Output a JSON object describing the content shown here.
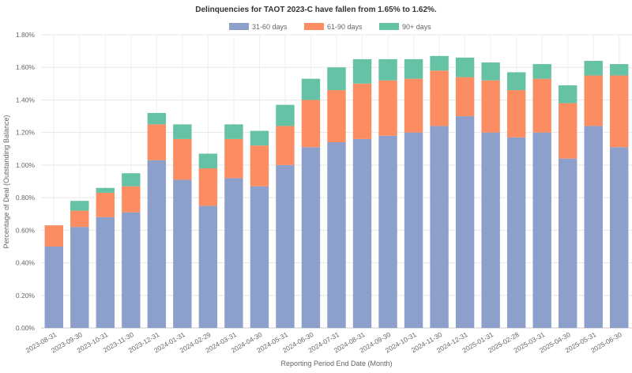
{
  "chart_data": {
    "type": "bar",
    "stacked": true,
    "title": "Delinquencies for TAOT 2023-C have fallen from 1.65% to 1.62%.",
    "xlabel": "Reporting Period End Date (Month)",
    "ylabel": "Percentage of Deal (Outstanding Balance)",
    "ylim": [
      0,
      1.8
    ],
    "yticks": [
      "0.00%",
      "0.20%",
      "0.40%",
      "0.60%",
      "0.80%",
      "1.00%",
      "1.20%",
      "1.40%",
      "1.60%",
      "1.80%"
    ],
    "grid": true,
    "legend_position": "top-center",
    "categories": [
      "2023-08-31",
      "2023-09-30",
      "2023-10-31",
      "2023-11-30",
      "2023-12-31",
      "2024-01-31",
      "2024-02-29",
      "2024-03-31",
      "2024-04-30",
      "2024-05-31",
      "2024-06-30",
      "2024-07-31",
      "2024-08-31",
      "2024-09-30",
      "2024-10-31",
      "2024-11-30",
      "2024-12-31",
      "2025-01-31",
      "2025-02-28",
      "2025-03-31",
      "2025-04-30",
      "2025-05-31",
      "2025-06-30"
    ],
    "series": [
      {
        "name": "31-60 days",
        "color": "#8da0cb",
        "values": [
          0.5,
          0.62,
          0.68,
          0.71,
          1.03,
          0.91,
          0.75,
          0.92,
          0.87,
          1.0,
          1.11,
          1.14,
          1.16,
          1.18,
          1.2,
          1.24,
          1.3,
          1.2,
          1.17,
          1.2,
          1.04,
          1.24,
          1.11
        ]
      },
      {
        "name": "61-90 days",
        "color": "#fc8d62",
        "values": [
          0.13,
          0.1,
          0.15,
          0.16,
          0.22,
          0.25,
          0.23,
          0.24,
          0.25,
          0.24,
          0.29,
          0.32,
          0.34,
          0.34,
          0.33,
          0.34,
          0.24,
          0.32,
          0.29,
          0.33,
          0.34,
          0.31,
          0.44
        ]
      },
      {
        "name": "90+ days",
        "color": "#66c2a5",
        "values": [
          0,
          0.06,
          0.03,
          0.08,
          0.07,
          0.09,
          0.09,
          0.09,
          0.09,
          0.13,
          0.13,
          0.14,
          0.15,
          0.13,
          0.12,
          0.09,
          0.12,
          0.11,
          0.11,
          0.09,
          0.11,
          0.09,
          0.07
        ]
      }
    ]
  }
}
